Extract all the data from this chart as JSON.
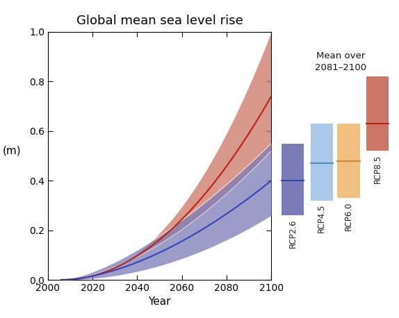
{
  "title": "Global mean sea level rise",
  "xlabel": "Year",
  "ylabel": "(m)",
  "xlim": [
    2000,
    2100
  ],
  "ylim": [
    0.0,
    1.0
  ],
  "xticks": [
    2000,
    2020,
    2040,
    2060,
    2080,
    2100
  ],
  "yticks": [
    0.0,
    0.2,
    0.4,
    0.6,
    0.8,
    1.0
  ],
  "start_year": 2006,
  "end_year": 2100,
  "rcp26": {
    "mean_final": 0.4,
    "low_final": 0.26,
    "high_final": 0.55,
    "color_fill": "#7B7BB8",
    "color_line": "#3344BB",
    "bar_low": 0.26,
    "bar_high": 0.55,
    "bar_mean": 0.4,
    "bar_color": "#7B7BB8",
    "bar_line_color": "#3344BB",
    "label": "RCP2.6"
  },
  "rcp45": {
    "mean_final": 0.47,
    "low_final": 0.32,
    "high_final": 0.63,
    "color_fill": "#AAC8E8",
    "color_line": "#5588BB",
    "bar_low": 0.32,
    "bar_high": 0.63,
    "bar_mean": 0.47,
    "bar_color": "#AAC8E8",
    "bar_line_color": "#5588BB",
    "label": "RCP4.5"
  },
  "rcp60": {
    "mean_final": 0.48,
    "low_final": 0.33,
    "high_final": 0.63,
    "color_fill": "#F0C080",
    "color_line": "#CC8833",
    "bar_low": 0.33,
    "bar_high": 0.63,
    "bar_mean": 0.48,
    "bar_color": "#F0C080",
    "bar_line_color": "#CC8833",
    "label": "RCP6.0"
  },
  "rcp85": {
    "mean_final": 0.74,
    "low_final": 0.52,
    "high_final": 1.0,
    "color_fill": "#CC7766",
    "color_line": "#BB2211",
    "bar_low": 0.52,
    "bar_high": 0.82,
    "bar_mean": 0.63,
    "bar_color": "#CC7766",
    "bar_line_color": "#BB2211",
    "label": "RCP8.5"
  },
  "legend_title": "Mean over\n2081–2100",
  "background_color": "#FFFFFF",
  "figsize": [
    5.74,
    4.58
  ],
  "dpi": 100
}
